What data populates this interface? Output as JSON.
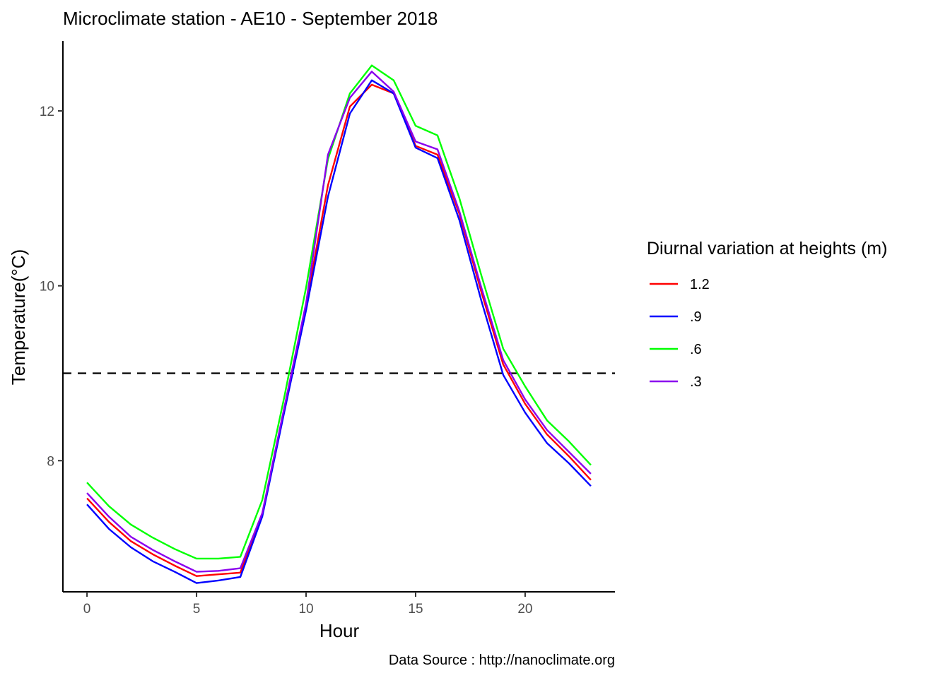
{
  "chart_data": {
    "type": "line",
    "title": "Microclimate station -  AE10 - September 2018",
    "xlabel": "Hour",
    "ylabel": "Temperature(°C)",
    "caption": "Data Source : http://nanoclimate.org",
    "xlim": [
      -1.1,
      24.1
    ],
    "ylim": [
      6.5,
      12.8
    ],
    "xticks": [
      0,
      5,
      10,
      15,
      20
    ],
    "yticks": [
      8,
      10,
      12
    ],
    "grid": false,
    "legend": {
      "title": "Diurnal variation at heights (m)",
      "placement": "right"
    },
    "reference_line": {
      "y": 9,
      "style": "dashed",
      "color": "#000000"
    },
    "x": [
      0,
      1,
      2,
      3,
      4,
      5,
      6,
      7,
      8,
      9,
      10,
      11,
      12,
      13,
      14,
      15,
      16,
      17,
      18,
      19,
      20,
      21,
      22,
      23
    ],
    "series": [
      {
        "name": "1.2",
        "color": "#ff0000",
        "values": [
          7.57,
          7.3,
          7.08,
          6.93,
          6.8,
          6.68,
          6.7,
          6.72,
          7.38,
          8.58,
          9.78,
          11.15,
          12.05,
          12.3,
          12.2,
          11.6,
          11.5,
          10.82,
          9.93,
          9.1,
          8.65,
          8.3,
          8.05,
          7.78
        ]
      },
      {
        "name": ".9",
        "color": "#0000ff",
        "values": [
          7.5,
          7.22,
          7.01,
          6.85,
          6.73,
          6.6,
          6.63,
          6.67,
          7.36,
          8.55,
          9.72,
          11.02,
          11.97,
          12.35,
          12.2,
          11.58,
          11.46,
          10.75,
          9.83,
          8.98,
          8.55,
          8.2,
          7.97,
          7.71
        ]
      },
      {
        "name": ".6",
        "color": "#00ff00",
        "values": [
          7.75,
          7.48,
          7.27,
          7.12,
          6.99,
          6.88,
          6.88,
          6.9,
          7.55,
          8.72,
          9.98,
          11.45,
          12.2,
          12.52,
          12.35,
          11.83,
          11.72,
          11.0,
          10.12,
          9.28,
          8.85,
          8.46,
          8.22,
          7.95
        ]
      },
      {
        "name": ".3",
        "color": "#8b00ee",
        "values": [
          7.63,
          7.36,
          7.13,
          6.98,
          6.85,
          6.73,
          6.74,
          6.77,
          7.4,
          8.6,
          9.8,
          11.5,
          12.15,
          12.45,
          12.22,
          11.65,
          11.56,
          10.85,
          9.98,
          9.15,
          8.7,
          8.35,
          8.1,
          7.85
        ]
      }
    ]
  }
}
